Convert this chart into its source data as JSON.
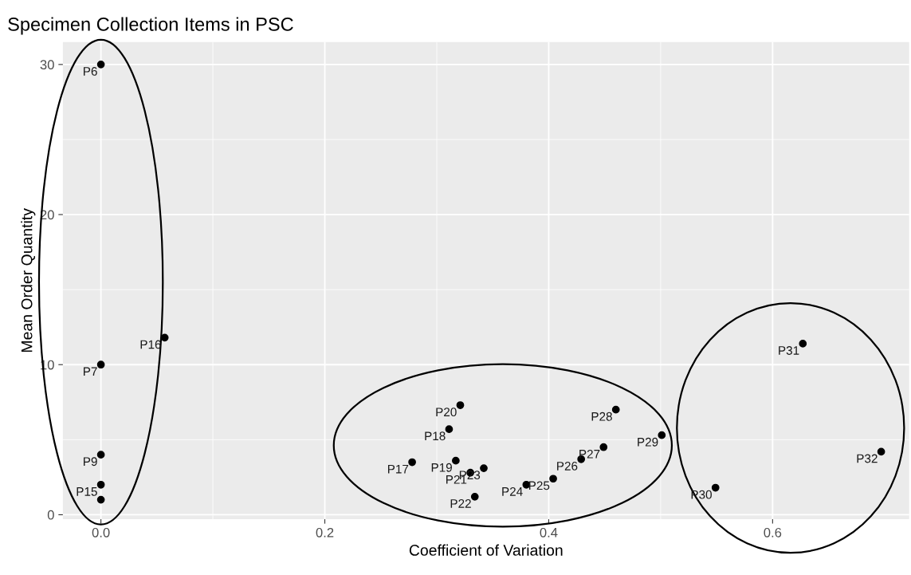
{
  "chart_data": {
    "type": "scatter",
    "title": "Specimen Collection Items in PSC",
    "xlabel": "Coefficient of Variation",
    "ylabel": "Mean Order Quantity",
    "x": [
      0,
      0.057,
      0,
      0,
      0,
      0,
      0.278,
      0.311,
      0.317,
      0.321,
      0.33,
      0.334,
      0.342,
      0.38,
      0.404,
      0.429,
      0.449,
      0.46,
      0.501,
      0.549,
      0.627,
      0.697
    ],
    "series": [
      {
        "color": "#000000",
        "values": [
          30,
          11.8,
          10,
          4,
          2,
          1,
          3.5,
          5.7,
          3.6,
          7.3,
          2.8,
          1.2,
          3.1,
          2.0,
          2.4,
          3.7,
          4.5,
          7.0,
          5.3,
          1.8,
          11.4,
          4.2
        ]
      }
    ],
    "annotations": [
      {
        "text": "P6",
        "x": 0,
        "y": 30
      },
      {
        "text": "P16",
        "x": 0.057,
        "y": 11.8
      },
      {
        "text": "P7",
        "x": 0,
        "y": 10
      },
      {
        "text": "P9",
        "x": 0,
        "y": 4
      },
      {
        "text": "P15",
        "x": 0,
        "y": 2
      },
      {
        "text": "P17",
        "x": 0.278,
        "y": 3.5
      },
      {
        "text": "P18",
        "x": 0.311,
        "y": 5.7
      },
      {
        "text": "P19",
        "x": 0.317,
        "y": 3.6
      },
      {
        "text": "P20",
        "x": 0.321,
        "y": 7.3
      },
      {
        "text": "P21",
        "x": 0.33,
        "y": 2.8
      },
      {
        "text": "P22",
        "x": 0.334,
        "y": 1.2
      },
      {
        "text": "P23",
        "x": 0.342,
        "y": 3.1
      },
      {
        "text": "P24",
        "x": 0.38,
        "y": 2.0
      },
      {
        "text": "P25",
        "x": 0.404,
        "y": 2.4
      },
      {
        "text": "P26",
        "x": 0.429,
        "y": 3.7
      },
      {
        "text": "P27",
        "x": 0.449,
        "y": 4.5
      },
      {
        "text": "P28",
        "x": 0.46,
        "y": 7.0
      },
      {
        "text": "P29",
        "x": 0.501,
        "y": 5.3
      },
      {
        "text": "P30",
        "x": 0.549,
        "y": 1.8
      },
      {
        "text": "P31",
        "x": 0.627,
        "y": 11.4
      },
      {
        "text": "P32",
        "x": 0.697,
        "y": 4.2
      }
    ],
    "xlim": [
      -0.034,
      0.722
    ],
    "ylim": [
      -0.3,
      31.5
    ],
    "xticks": [
      {
        "value": 0,
        "label": "0.0"
      },
      0.2,
      0.4,
      0.6
    ],
    "yticks": [
      0,
      10,
      20,
      30
    ],
    "grid": true,
    "marker": "circle"
  }
}
